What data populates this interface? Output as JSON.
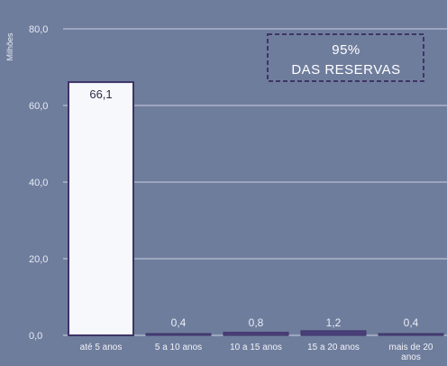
{
  "chart_data": {
    "type": "bar",
    "ylabel": "Milhões",
    "ylim": [
      0,
      80
    ],
    "yticks": [
      "0,0",
      "20,0",
      "40,0",
      "60,0",
      "80,0"
    ],
    "categories": [
      "até 5 anos",
      "5 a 10 anos",
      "10 a 15 anos",
      "15 a 20 anos",
      "mais de 20 anos"
    ],
    "values": [
      66.1,
      0.4,
      0.8,
      1.2,
      0.4
    ],
    "value_labels": [
      "66,1",
      "0,4",
      "0,8",
      "1,2",
      "0,4"
    ],
    "annotation": {
      "line1": "95%",
      "line2": "DAS RESERVAS"
    },
    "grid": true,
    "colors": {
      "background": "#6f7d9d",
      "grid": "#c9d0e0",
      "bar_first": "#f7f8fc",
      "bar_other": "#4a3f7a",
      "bar_border": "#3d3566",
      "annotation_border": "#3d3566"
    }
  }
}
